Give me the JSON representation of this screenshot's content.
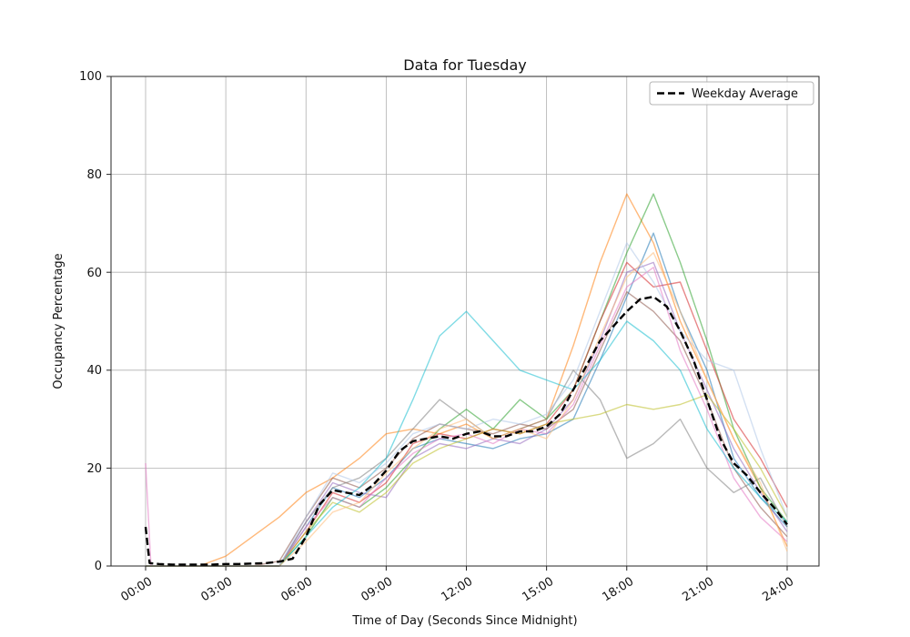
{
  "chart_data": {
    "type": "line",
    "title": "Data for Tuesday",
    "xlabel": "Time of Day (Seconds Since Midnight)",
    "ylabel": "Occupancy Percentage",
    "ylim": [
      0,
      100
    ],
    "xlim_hours": [
      0,
      24
    ],
    "grid": true,
    "x_tick_hours": [
      0,
      3,
      6,
      9,
      12,
      15,
      18,
      21,
      24
    ],
    "x_tick_labels": [
      "00:00",
      "03:00",
      "06:00",
      "09:00",
      "12:00",
      "15:00",
      "18:00",
      "21:00",
      "24:00"
    ],
    "y_tick_values": [
      0,
      20,
      40,
      60,
      80,
      100
    ],
    "y_tick_labels": [
      "0",
      "20",
      "40",
      "60",
      "80",
      "100"
    ],
    "legend": {
      "position": "upper right",
      "entries": [
        {
          "label": "Weekday Average",
          "style": "dashed",
          "color": "#000000"
        }
      ]
    },
    "series_opacity": 0.55,
    "x_hours": [
      0,
      1,
      2,
      3,
      4,
      5,
      6,
      7,
      8,
      9,
      10,
      11,
      12,
      13,
      14,
      15,
      16,
      17,
      18,
      19,
      20,
      21,
      22,
      23,
      24
    ],
    "series": [
      {
        "color": "#1f77b4",
        "values": [
          0,
          0,
          0,
          0,
          0,
          0,
          8,
          16,
          14,
          18,
          24,
          26,
          25,
          24,
          26,
          27,
          30,
          42,
          55,
          68,
          52,
          40,
          22,
          14,
          8
        ]
      },
      {
        "color": "#ff7f0e",
        "values": [
          0,
          0,
          0,
          2,
          6,
          10,
          15,
          18,
          22,
          27,
          28,
          27,
          29,
          26,
          28,
          30,
          45,
          62,
          76,
          66,
          50,
          38,
          26,
          16,
          4
        ]
      },
      {
        "color": "#2ca02c",
        "values": [
          0,
          0,
          0,
          0,
          0,
          0,
          6,
          14,
          12,
          16,
          22,
          28,
          32,
          28,
          34,
          30,
          36,
          50,
          64,
          76,
          62,
          46,
          28,
          16,
          9
        ]
      },
      {
        "color": "#d62728",
        "values": [
          0,
          0,
          0,
          0,
          0,
          0,
          7,
          15,
          13,
          17,
          25,
          27,
          26,
          28,
          27,
          29,
          36,
          50,
          62,
          57,
          58,
          44,
          30,
          22,
          12
        ]
      },
      {
        "color": "#9467bd",
        "values": [
          0,
          0,
          0,
          0,
          0,
          0,
          9,
          17,
          15,
          14,
          22,
          25,
          24,
          26,
          25,
          28,
          34,
          46,
          60,
          62,
          48,
          36,
          24,
          15,
          7
        ]
      },
      {
        "color": "#8c564b",
        "values": [
          0,
          0,
          0,
          0,
          0,
          1,
          10,
          18,
          16,
          20,
          26,
          29,
          28,
          27,
          29,
          28,
          32,
          44,
          56,
          52,
          46,
          34,
          20,
          12,
          6
        ]
      },
      {
        "color": "#e377c2",
        "x_hours": [
          0,
          0.2,
          1,
          2,
          3,
          4,
          5,
          6,
          7,
          8,
          9,
          10,
          11,
          12,
          13,
          14,
          15,
          16,
          17,
          18,
          19,
          20,
          21,
          22,
          23,
          24
        ],
        "values": [
          21,
          0,
          0,
          0,
          0,
          0,
          0,
          8,
          14,
          12,
          18,
          23,
          26,
          27,
          25,
          28,
          27,
          33,
          45,
          57,
          61,
          44,
          32,
          18,
          10,
          5
        ]
      },
      {
        "color": "#7f7f7f",
        "values": [
          0,
          0,
          0,
          0,
          0,
          0,
          9,
          16,
          18,
          22,
          28,
          34,
          30,
          26,
          28,
          30,
          40,
          34,
          22,
          25,
          30,
          20,
          15,
          18,
          8
        ]
      },
      {
        "color": "#bcbd22",
        "values": [
          0,
          0,
          0,
          0,
          0,
          0,
          7,
          13,
          11,
          15,
          21,
          24,
          26,
          28,
          27,
          29,
          30,
          31,
          33,
          32,
          33,
          35,
          28,
          20,
          10
        ]
      },
      {
        "color": "#17becf",
        "values": [
          0,
          0,
          0,
          0,
          0,
          0,
          6,
          12,
          16,
          22,
          34,
          47,
          52,
          46,
          40,
          38,
          36,
          42,
          50,
          46,
          40,
          28,
          20,
          14,
          9
        ]
      },
      {
        "color": "#aec7e8",
        "values": [
          0,
          0,
          0,
          0,
          0,
          0,
          10,
          19,
          17,
          21,
          27,
          29,
          28,
          30,
          29,
          31,
          38,
          52,
          66,
          58,
          48,
          42,
          40,
          24,
          10
        ]
      },
      {
        "color": "#ffbb78",
        "values": [
          0,
          0,
          0,
          0,
          0,
          0,
          5,
          11,
          13,
          19,
          24,
          28,
          30,
          26,
          28,
          26,
          34,
          47,
          59,
          64,
          52,
          38,
          26,
          17,
          3
        ]
      }
    ],
    "average": {
      "label": "Weekday Average",
      "color": "#000000",
      "dash": "8 4",
      "x_hours": [
        0,
        0.15,
        0.5,
        1,
        1.5,
        2,
        2.5,
        3,
        3.5,
        4,
        4.5,
        5,
        5.5,
        6,
        6.5,
        7,
        7.5,
        8,
        8.5,
        9,
        9.5,
        10,
        10.5,
        11,
        11.5,
        12,
        12.5,
        13,
        13.5,
        14,
        14.5,
        15,
        15.5,
        16,
        16.5,
        17,
        17.5,
        18,
        18.5,
        19,
        19.5,
        20,
        20.5,
        21,
        21.5,
        22,
        22.5,
        23,
        23.5,
        24
      ],
      "values": [
        8,
        0.6,
        0.4,
        0.3,
        0.3,
        0.3,
        0.3,
        0.4,
        0.4,
        0.5,
        0.6,
        0.9,
        1.5,
        6,
        12.5,
        15.5,
        15,
        14.5,
        16.5,
        19.5,
        23.5,
        25.5,
        26,
        26.5,
        26,
        27,
        27.5,
        26.5,
        26.5,
        27.5,
        27.5,
        28.5,
        31,
        36,
        41,
        46,
        49,
        52,
        54.5,
        55,
        53,
        48,
        42,
        34,
        26,
        21,
        18.5,
        15,
        12,
        8.5
      ]
    }
  }
}
